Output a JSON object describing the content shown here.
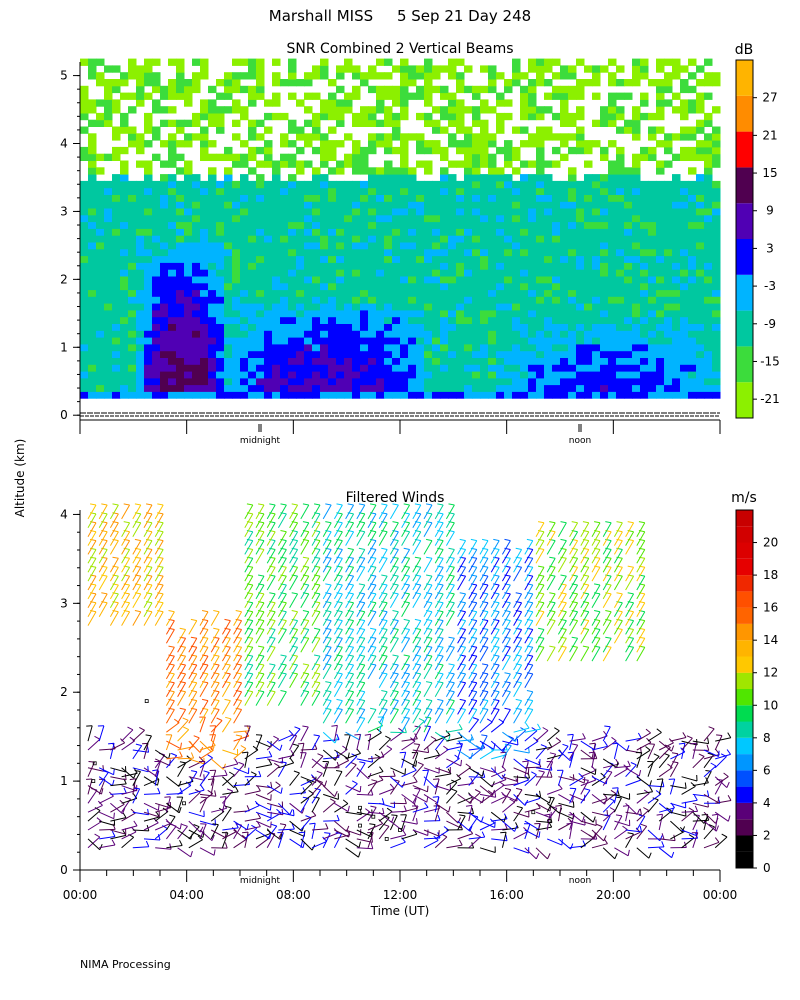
{
  "figure": {
    "title": "Marshall MISS     5 Sep 21 Day 248",
    "ylabel": "Altitude (km)",
    "footer": "NIMA Processing"
  },
  "chart_data": [
    {
      "type": "heatmap",
      "title": "SNR Combined 2 Vertical Beams",
      "xlabel": "",
      "ylabel": "Altitude (km)",
      "xlim": [
        0,
        24
      ],
      "ylim": [
        -0.1,
        5.2
      ],
      "yticks": [
        0,
        1,
        2,
        3,
        4,
        5
      ],
      "x_marker_labels": [
        {
          "x": 6.75,
          "label": "midnight"
        },
        {
          "x": 18.75,
          "label": "noon"
        }
      ],
      "colorbar": {
        "unit": "dB",
        "ticks": [
          27,
          21,
          15,
          9,
          3,
          -3,
          -9,
          -15,
          -21
        ],
        "bin_edges": [
          -24,
          -18,
          -12,
          -6,
          0,
          6,
          12,
          18,
          24,
          30,
          33
        ],
        "colors": [
          "#8cf000",
          "#3cdc3c",
          "#00c8a0",
          "#00b4ff",
          "#0000ff",
          "#5000b4",
          "#500050",
          "#ff0000",
          "#ff8c00",
          "#ffb400"
        ]
      },
      "regions": [
        {
          "name": "upper noise (sparse)",
          "t0": 0,
          "t1": 24,
          "z0": 3.2,
          "z1": 5.2,
          "snr_db": -21
        },
        {
          "name": "green layer",
          "t0": 0,
          "t1": 24,
          "z0": 0.3,
          "z1": 3.5,
          "snr_db": -15
        },
        {
          "name": "evening boundary layer core",
          "t0": 2.2,
          "t1": 5.5,
          "z0": 0.3,
          "z1": 2.5,
          "snr_db": 9
        },
        {
          "name": "night decaying layer",
          "t0": 5.5,
          "t1": 13,
          "z0": 0.3,
          "z1": 1.6,
          "snr_db": 3
        },
        {
          "name": "daytime convective layer",
          "t0": 15.5,
          "t1": 24,
          "z0": 0.3,
          "z1": 1.3,
          "snr_db": -3
        }
      ]
    },
    {
      "type": "scatter",
      "subtype": "wind-barbs",
      "title": "Filtered Winds",
      "xlabel": "Time (UT)",
      "ylabel": "Altitude (km)",
      "xlim": [
        0,
        24
      ],
      "ylim": [
        0,
        4.05
      ],
      "xticks": [
        "00:00",
        "04:00",
        "08:00",
        "12:00",
        "16:00",
        "20:00",
        "00:00"
      ],
      "yticks": [
        0,
        1,
        2,
        3,
        4
      ],
      "x_marker_labels": [
        {
          "x": 6.75,
          "label": "midnight"
        },
        {
          "x": 18.75,
          "label": "noon"
        }
      ],
      "colorbar": {
        "unit": "m/s",
        "ticks": [
          20,
          18,
          16,
          14,
          12,
          10,
          8,
          6,
          4,
          2,
          0
        ],
        "bin_edges": [
          0,
          1,
          2,
          3,
          4,
          5,
          6,
          7,
          8,
          9,
          10,
          11,
          12,
          13,
          14,
          15,
          16,
          17,
          18,
          19,
          20,
          21,
          22
        ],
        "colors": [
          "#000000",
          "#000000",
          "#500050",
          "#5a0078",
          "#0000ff",
          "#0050ff",
          "#0096ff",
          "#00c8ff",
          "#00d2a0",
          "#00dc50",
          "#50e600",
          "#a0e600",
          "#ffc800",
          "#ffb400",
          "#ff9600",
          "#ff6400",
          "#ff5000",
          "#f02800",
          "#e60000",
          "#dc0000",
          "#d20000",
          "#c80000"
        ]
      },
      "wind_speed_regions": [
        {
          "t0": 0,
          "t1": 3,
          "z0": 2.7,
          "z1": 4.0,
          "speed_ms": 13
        },
        {
          "t0": 3,
          "t1": 6,
          "z0": 1.2,
          "z1": 2.8,
          "speed_ms": 15
        },
        {
          "t0": 6,
          "t1": 9,
          "z0": 1.8,
          "z1": 4.0,
          "speed_ms": 10
        },
        {
          "t0": 9,
          "t1": 14,
          "z0": 1.5,
          "z1": 4.0,
          "speed_ms": 8
        },
        {
          "t0": 14,
          "t1": 17,
          "z0": 1.2,
          "z1": 3.6,
          "speed_ms": 6
        },
        {
          "t0": 17,
          "t1": 21,
          "z0": 2.3,
          "z1": 3.8,
          "speed_ms": 11
        },
        {
          "t0": 0,
          "t1": 24,
          "z0": 0.2,
          "z1": 1.5,
          "speed_ms": 3
        }
      ]
    }
  ]
}
